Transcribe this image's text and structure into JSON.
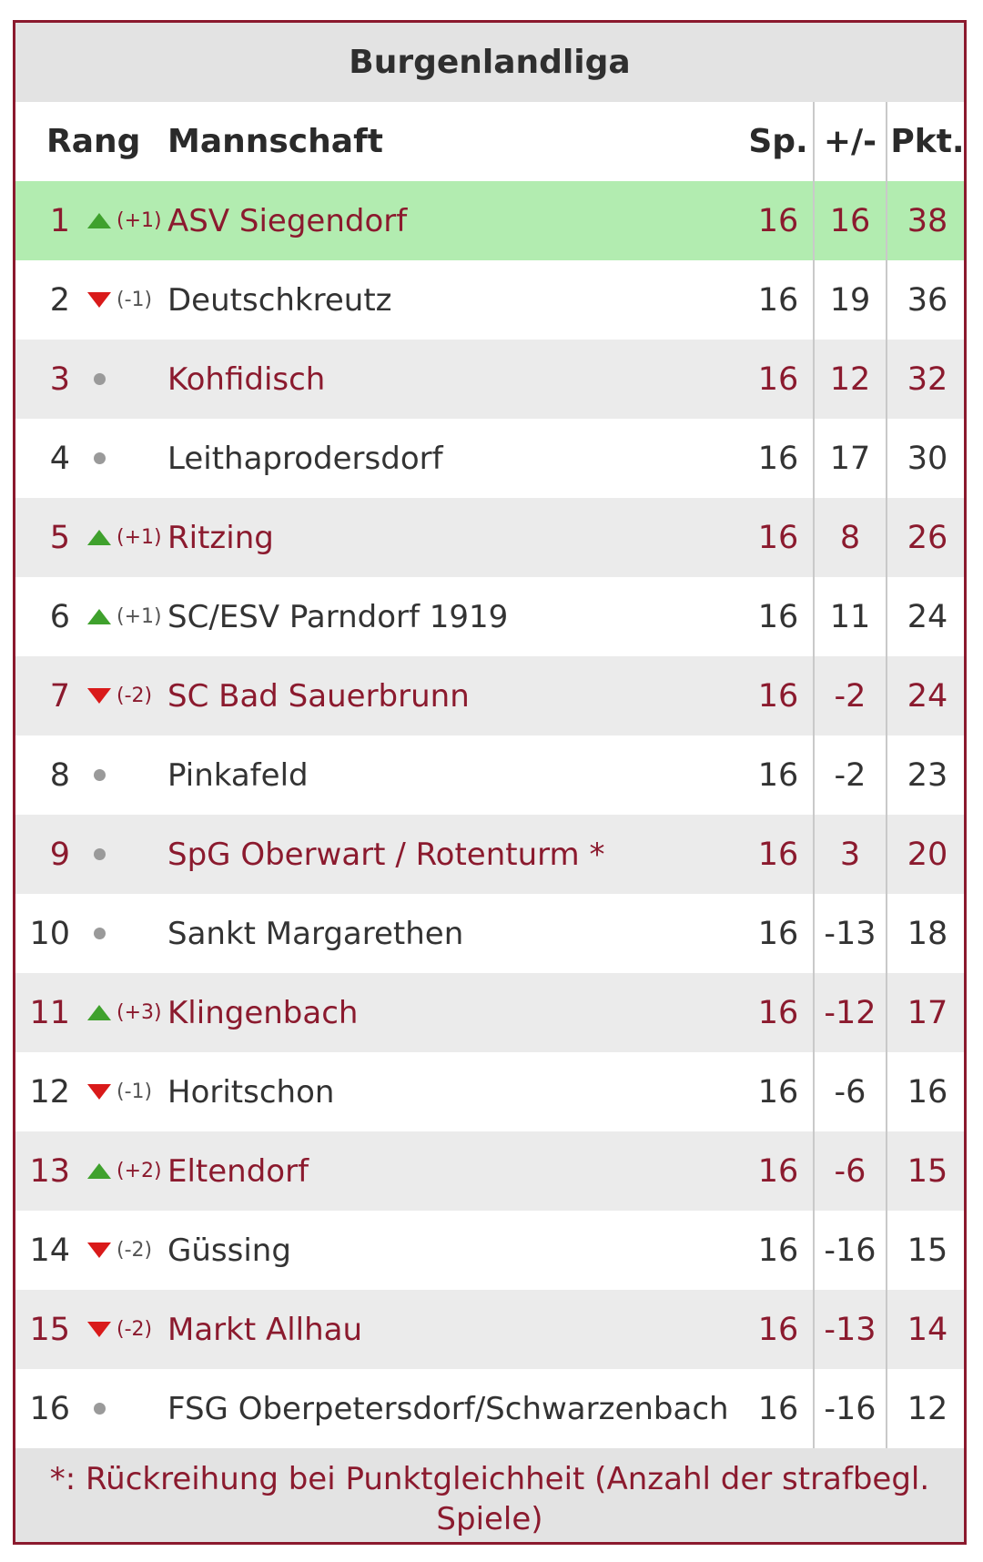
{
  "table": {
    "title": "Burgenlandliga",
    "headers": {
      "rang": "Rang",
      "team": "Mannschaft",
      "sp": "Sp.",
      "diff": "+/-",
      "pkt": "Pkt."
    },
    "rows": [
      {
        "rank": "1",
        "trend": "up",
        "change": "(+1)",
        "team": "ASV Siegendorf",
        "sp": "16",
        "diff": "16",
        "pkt": "38"
      },
      {
        "rank": "2",
        "trend": "down",
        "change": "(-1)",
        "team": "Deutschkreutz",
        "sp": "16",
        "diff": "19",
        "pkt": "36"
      },
      {
        "rank": "3",
        "trend": "same",
        "change": "",
        "team": "Kohfidisch",
        "sp": "16",
        "diff": "12",
        "pkt": "32"
      },
      {
        "rank": "4",
        "trend": "same",
        "change": "",
        "team": "Leithaprodersdorf",
        "sp": "16",
        "diff": "17",
        "pkt": "30"
      },
      {
        "rank": "5",
        "trend": "up",
        "change": "(+1)",
        "team": "Ritzing",
        "sp": "16",
        "diff": "8",
        "pkt": "26"
      },
      {
        "rank": "6",
        "trend": "up",
        "change": "(+1)",
        "team": "SC/ESV Parndorf 1919",
        "sp": "16",
        "diff": "11",
        "pkt": "24"
      },
      {
        "rank": "7",
        "trend": "down",
        "change": "(-2)",
        "team": "SC Bad Sauerbrunn",
        "sp": "16",
        "diff": "-2",
        "pkt": "24"
      },
      {
        "rank": "8",
        "trend": "same",
        "change": "",
        "team": "Pinkafeld",
        "sp": "16",
        "diff": "-2",
        "pkt": "23"
      },
      {
        "rank": "9",
        "trend": "same",
        "change": "",
        "team": "SpG Oberwart / Rotenturm *",
        "sp": "16",
        "diff": "3",
        "pkt": "20"
      },
      {
        "rank": "10",
        "trend": "same",
        "change": "",
        "team": "Sankt Margarethen",
        "sp": "16",
        "diff": "-13",
        "pkt": "18"
      },
      {
        "rank": "11",
        "trend": "up",
        "change": "(+3)",
        "team": "Klingenbach",
        "sp": "16",
        "diff": "-12",
        "pkt": "17"
      },
      {
        "rank": "12",
        "trend": "down",
        "change": "(-1)",
        "team": "Horitschon",
        "sp": "16",
        "diff": "-6",
        "pkt": "16"
      },
      {
        "rank": "13",
        "trend": "up",
        "change": "(+2)",
        "team": "Eltendorf",
        "sp": "16",
        "diff": "-6",
        "pkt": "15"
      },
      {
        "rank": "14",
        "trend": "down",
        "change": "(-2)",
        "team": "Güssing",
        "sp": "16",
        "diff": "-16",
        "pkt": "15"
      },
      {
        "rank": "15",
        "trend": "down",
        "change": "(-2)",
        "team": "Markt Allhau",
        "sp": "16",
        "diff": "-13",
        "pkt": "14"
      },
      {
        "rank": "16",
        "trend": "same",
        "change": "",
        "team": "FSG Oberpetersdorf/Schwarzenbach",
        "sp": "16",
        "diff": "-16",
        "pkt": "12"
      }
    ],
    "footnote": "*: Rückreihung bei Punktgleichheit (Anzahl der strafbegl. Spiele)"
  },
  "colors": {
    "frame": "#8b1a2e",
    "leader_row": "#b2ecb0",
    "alt_row": "#ebebeb",
    "up_arrow": "#3fa12d",
    "down_arrow": "#d91a1a",
    "same_dot": "#9a9a9a"
  },
  "icons": {
    "up": "triangle-up-icon",
    "down": "triangle-down-icon",
    "same": "dot-icon"
  }
}
